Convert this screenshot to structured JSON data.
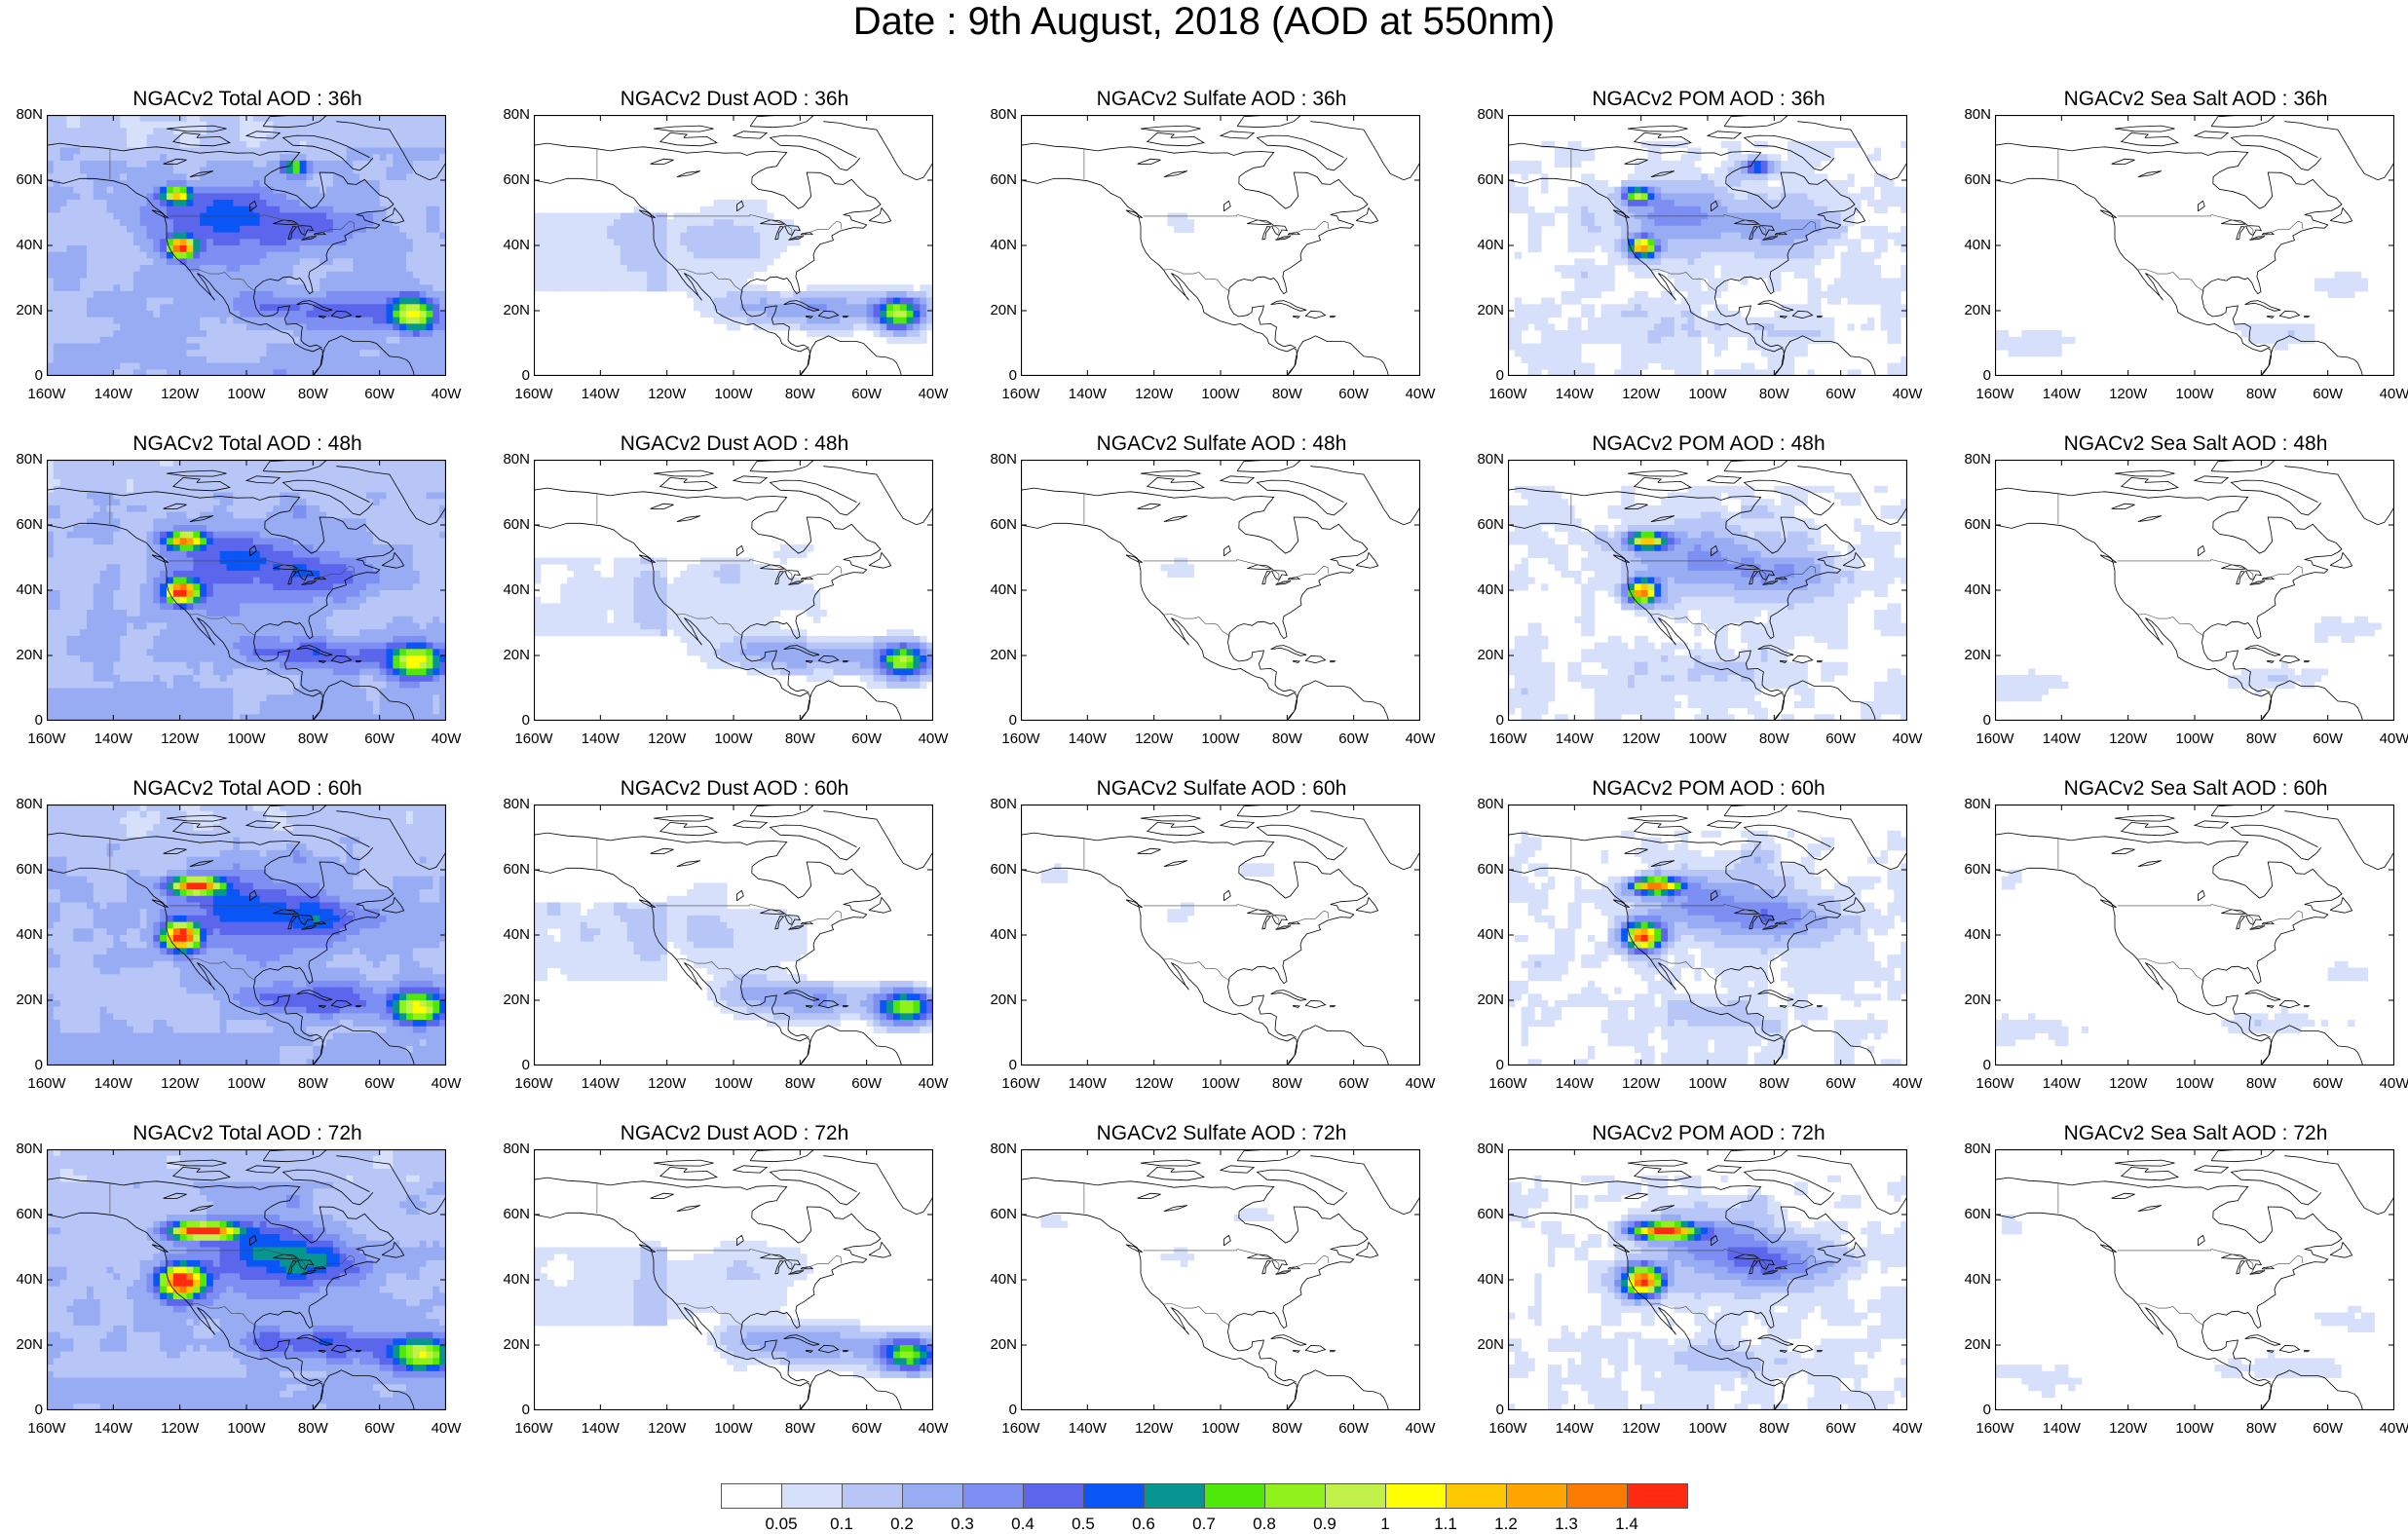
{
  "title": "Date : 9th August, 2018 (AOD at 550nm)",
  "lat_labels": [
    "80N",
    "60N",
    "40N",
    "20N",
    "0"
  ],
  "lon_labels": [
    "160W",
    "140W",
    "120W",
    "100W",
    "80W",
    "60W",
    "40W"
  ],
  "panels": [
    {
      "title": "NGACv2 Total AOD : 36h",
      "field": "total",
      "hour": 36
    },
    {
      "title": "NGACv2 Dust AOD : 36h",
      "field": "dust",
      "hour": 36
    },
    {
      "title": "NGACv2 Sulfate AOD : 36h",
      "field": "sulfate",
      "hour": 36
    },
    {
      "title": "NGACv2 POM AOD : 36h",
      "field": "pom",
      "hour": 36
    },
    {
      "title": "NGACv2 Sea Salt AOD : 36h",
      "field": "seasalt",
      "hour": 36
    },
    {
      "title": "NGACv2 Total AOD : 48h",
      "field": "total",
      "hour": 48
    },
    {
      "title": "NGACv2 Dust AOD : 48h",
      "field": "dust",
      "hour": 48
    },
    {
      "title": "NGACv2 Sulfate AOD : 48h",
      "field": "sulfate",
      "hour": 48
    },
    {
      "title": "NGACv2 POM AOD : 48h",
      "field": "pom",
      "hour": 48
    },
    {
      "title": "NGACv2 Sea Salt AOD : 48h",
      "field": "seasalt",
      "hour": 48
    },
    {
      "title": "NGACv2 Total AOD : 60h",
      "field": "total",
      "hour": 60
    },
    {
      "title": "NGACv2 Dust AOD : 60h",
      "field": "dust",
      "hour": 60
    },
    {
      "title": "NGACv2 Sulfate AOD : 60h",
      "field": "sulfate",
      "hour": 60
    },
    {
      "title": "NGACv2 POM AOD : 60h",
      "field": "pom",
      "hour": 60
    },
    {
      "title": "NGACv2 Sea Salt AOD : 60h",
      "field": "seasalt",
      "hour": 60
    },
    {
      "title": "NGACv2 Total AOD : 72h",
      "field": "total",
      "hour": 72
    },
    {
      "title": "NGACv2 Dust AOD : 72h",
      "field": "dust",
      "hour": 72
    },
    {
      "title": "NGACv2 Sulfate AOD : 72h",
      "field": "sulfate",
      "hour": 72
    },
    {
      "title": "NGACv2 POM AOD : 72h",
      "field": "pom",
      "hour": 72
    },
    {
      "title": "NGACv2 Sea Salt  AOD : 72h",
      "field": "seasalt",
      "hour": 72
    }
  ],
  "colorbar": {
    "colors": [
      "#ffffff",
      "#d6e0fb",
      "#b7c6f7",
      "#98acf4",
      "#7d8ff2",
      "#5b66ec",
      "#0a55f5",
      "#07968f",
      "#4ee80a",
      "#8ff21a",
      "#c2f24a",
      "#ffff00",
      "#ffc800",
      "#ffa500",
      "#ff7a00",
      "#ff2a10"
    ],
    "labels": [
      "0.05",
      "0.1",
      "0.2",
      "0.3",
      "0.4",
      "0.5",
      "0.6",
      "0.7",
      "0.8",
      "0.9",
      "1",
      "1.1",
      "1.2",
      "1.3",
      "1.4"
    ]
  },
  "map_colors": {
    "coast": "#000000",
    "border": "#444444",
    "frame": "#000000"
  }
}
